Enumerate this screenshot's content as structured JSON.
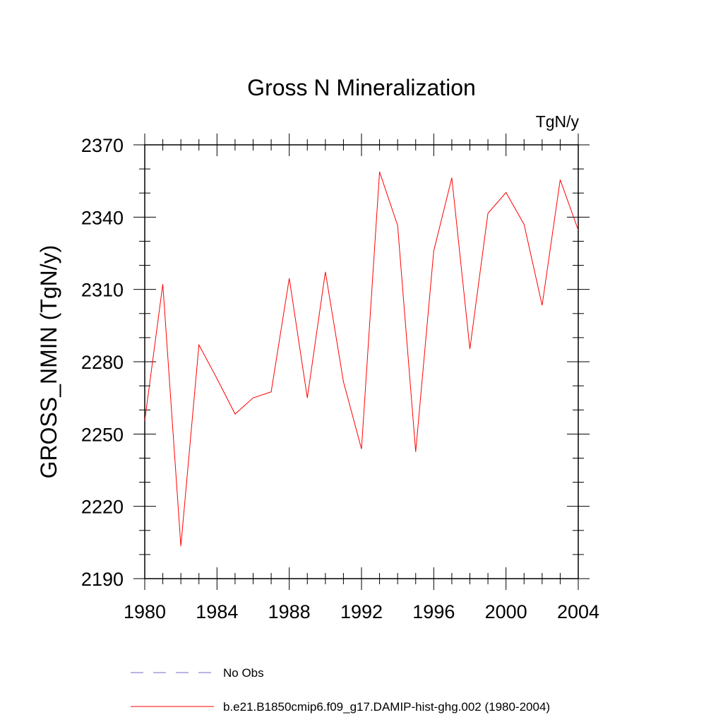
{
  "chart_data": {
    "type": "line",
    "title": "Gross N Mineralization",
    "units_label": "TgN/y",
    "ylabel": "GROSS_NMIN  (TgN/y)",
    "xlabel": "",
    "xlim": [
      1980,
      2004
    ],
    "ylim": [
      2190,
      2370
    ],
    "x_ticks": [
      1980,
      1984,
      1988,
      1992,
      1996,
      2000,
      2004
    ],
    "y_ticks": [
      2190,
      2220,
      2250,
      2280,
      2310,
      2340,
      2370
    ],
    "x_minor_step": 1,
    "y_minor_step": 10,
    "grid": false,
    "legend_position": "bottom",
    "x": [
      1980,
      1981,
      1982,
      1983,
      1984,
      1985,
      1986,
      1987,
      1988,
      1989,
      1990,
      1991,
      1992,
      1993,
      1994,
      1995,
      1996,
      1997,
      1998,
      1999,
      2000,
      2001,
      2002,
      2003,
      2004
    ],
    "series": [
      {
        "name": "b.e21.B1850cmip6.f09_g17.DAMIP-hist-ghg.002 (1980-2004)",
        "color": "#ff0000",
        "dash": "solid",
        "values": [
          2255.5,
          2312.2,
          2203.5,
          2287.0,
          2273.0,
          2258.3,
          2265.0,
          2267.5,
          2314.6,
          2265.0,
          2317.3,
          2271.7,
          2243.8,
          2358.8,
          2336.5,
          2242.6,
          2326.0,
          2356.3,
          2285.3,
          2341.6,
          2350.2,
          2337.0,
          2303.4,
          2355.5,
          2334.6
        ]
      }
    ],
    "legend": [
      {
        "label": "No Obs",
        "color": "#7b68c8",
        "dash": "dashed"
      },
      {
        "label": "b.e21.B1850cmip6.f09_g17.DAMIP-hist-ghg.002 (1980-2004)",
        "color": "#ff0000",
        "dash": "solid"
      }
    ]
  }
}
